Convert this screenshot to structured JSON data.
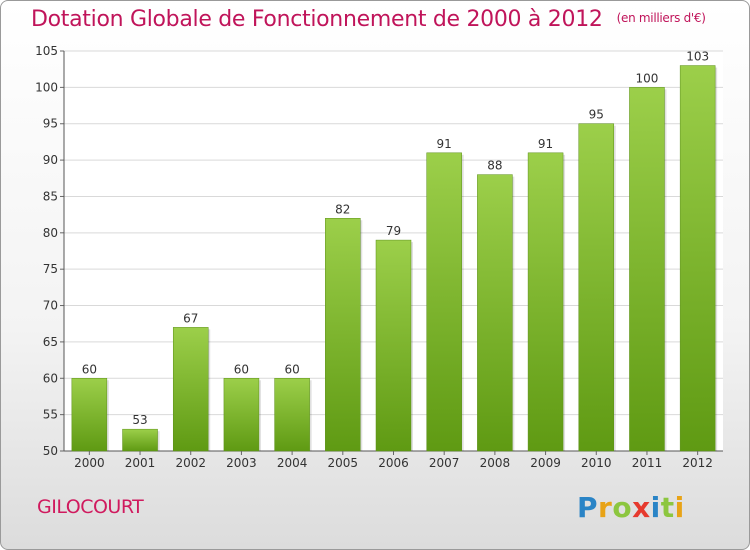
{
  "header": {
    "title": "Dotation Globale de Fonctionnement de 2000 à 2012",
    "subtitle": "(en milliers d'€)"
  },
  "footer": {
    "commune": "GILOCOURT",
    "brand_letters": [
      {
        "ch": "P",
        "color": "#2a84c6"
      },
      {
        "ch": "r",
        "color": "#e8a317"
      },
      {
        "ch": "o",
        "color": "#8cc63f"
      },
      {
        "ch": "x",
        "color": "#e63a2e"
      },
      {
        "ch": "i",
        "color": "#2a84c6"
      },
      {
        "ch": "t",
        "color": "#8cc63f"
      },
      {
        "ch": "i",
        "color": "#e8a317"
      }
    ]
  },
  "colors": {
    "bar_top": "#9ccf4a",
    "bar_bottom": "#5f9a13",
    "grid": "#d9d9d9",
    "title": "#c0145a"
  },
  "chart_data": {
    "type": "bar",
    "categories": [
      "2000",
      "2001",
      "2002",
      "2003",
      "2004",
      "2005",
      "2006",
      "2007",
      "2008",
      "2009",
      "2010",
      "2011",
      "2012"
    ],
    "values": [
      60,
      53,
      67,
      60,
      60,
      82,
      79,
      91,
      88,
      91,
      95,
      100,
      103
    ],
    "ylim": [
      50,
      105
    ],
    "yticks": [
      50,
      55,
      60,
      65,
      70,
      75,
      80,
      85,
      90,
      95,
      100,
      105
    ],
    "grid": true,
    "xlabel": "",
    "ylabel": ""
  }
}
